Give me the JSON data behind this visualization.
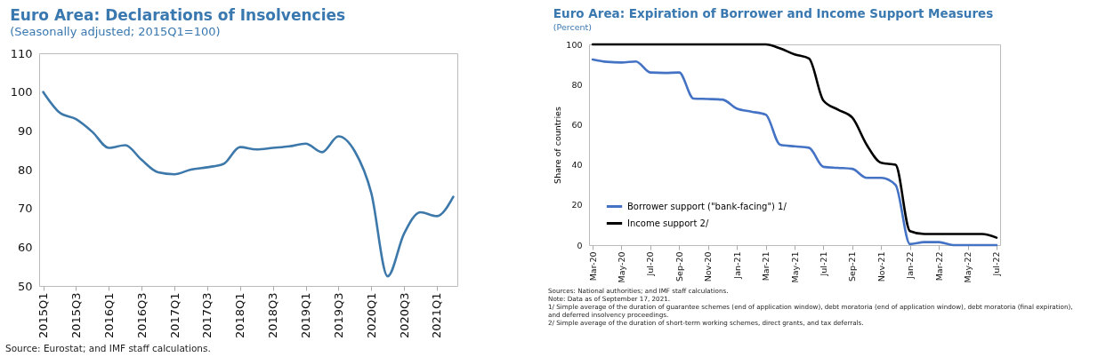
{
  "chart_data": [
    {
      "type": "line",
      "title": "Euro Area: Declarations of Insolvencies",
      "subtitle": "(Seasonally adjusted; 2015Q1=100)",
      "categories": [
        "2015Q1",
        null,
        "2015Q3",
        null,
        "2016Q1",
        null,
        "2016Q3",
        null,
        "2017Q1",
        null,
        "2017Q3",
        null,
        "2018Q1",
        null,
        "2018Q3",
        null,
        "2019Q1",
        null,
        "2019Q3",
        null,
        "2020Q1",
        null,
        "2020Q3",
        null,
        "2021Q1",
        null
      ],
      "series": [
        {
          "color": "#3d78aa",
          "values": [
            100,
            94.7,
            93,
            89.7,
            85.6,
            86.3,
            82.5,
            79.3,
            78.8,
            80,
            80.6,
            81.5,
            85.8,
            85.2,
            85.6,
            86,
            86.7,
            84.5,
            88.6,
            84.7,
            74,
            52.5,
            63.5,
            69,
            68,
            73
          ]
        }
      ],
      "ylim": [
        50,
        110
      ],
      "yticks": [
        50,
        60,
        70,
        80,
        90,
        100,
        110
      ],
      "grid": false,
      "legend": false,
      "annotations": [
        "Source: Eurostat; and IMF staff calculations."
      ]
    },
    {
      "type": "line",
      "title": "Euro Area: Expiration of Borrower and Income Support Measures",
      "subtitle": "(Percent)",
      "ylabel": "Share of countries",
      "categories": [
        "Mar-20",
        null,
        "May-20",
        null,
        "Jul-20",
        null,
        "Sep-20",
        null,
        "Nov-20",
        null,
        "Jan-21",
        null,
        "Mar-21",
        null,
        "May-21",
        null,
        "Jul-21",
        null,
        "Sep-21",
        null,
        "Nov-21",
        null,
        "Jan-22",
        null,
        "Mar-22",
        null,
        "May-22",
        null,
        "Jul-22"
      ],
      "series": [
        {
          "name": "Borrower support (\"bank-facing\") 1/",
          "color": "#4472c4",
          "values": [
            92.5,
            91.3,
            91,
            91.5,
            86,
            85.8,
            86,
            73,
            72.8,
            72.5,
            68,
            66.5,
            65,
            50,
            49.2,
            48.5,
            39,
            38.5,
            38,
            33.5,
            33.5,
            30,
            0.5,
            1.5,
            1.5,
            0,
            0,
            0,
            0
          ]
        },
        {
          "name": "Income support 2/",
          "color": "#000000",
          "values": [
            100,
            100,
            100,
            100,
            100,
            100,
            100,
            100,
            100,
            100,
            100,
            100,
            100,
            98,
            95,
            93,
            72,
            67.5,
            63.5,
            50,
            41,
            40,
            7,
            5.5,
            5.5,
            5.5,
            5.5,
            5.5,
            3.7
          ]
        }
      ],
      "ylim": [
        0,
        100
      ],
      "yticks": [
        0,
        20,
        40,
        60,
        80,
        100
      ],
      "grid": false,
      "legend": "bottom left",
      "annotations": [
        "Sources: National authorities; and IMF staff calculations.",
        "Note: Data as of September 17, 2021.",
        "1/ Simple average of the duration of guarantee schemes (end of application window), debt moratoria (end of application window), debt moratoria (final expiration), and deferred insolvency proceedings.",
        "2/ Simple average of the duration of short-term working schemes, direct grants, and tax deferrals."
      ]
    }
  ]
}
